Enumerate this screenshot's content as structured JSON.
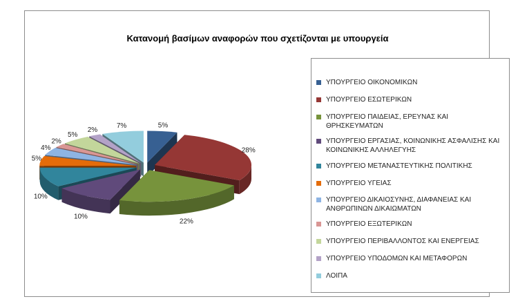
{
  "chart_data": {
    "type": "pie",
    "title": "Κατανομή βασίμων αναφορών που σχετίζονται με υπουργεία",
    "categories": [
      "ΥΠΟΥΡΓΕΙΟ ΟΙΚΟΝΟΜΙΚΩΝ",
      "ΥΠΟΥΡΓΕΙΟ ΕΣΩΤΕΡΙΚΩΝ",
      "ΥΠΟΥΡΓΕΙΟ ΠΑΙΔΕΙΑΣ, ΕΡΕΥΝΑΣ ΚΑΙ ΘΡΗΣΚΕΥΜΑΤΩΝ",
      "ΥΠΟΥΡΓΕΙΟ ΕΡΓΑΣΙΑΣ, ΚΟΙΝΩΝΙΚΗΣ ΑΣΦΑΛΙΣΗΣ ΚΑΙ ΚΟΙΝΩΝΙΚΗΣ ΑΛΛΗΛΕΓΥΗΣ",
      "ΥΠΟΥΡΓΕΙΟ ΜΕΤΑΝΑΣΤΕΥΤΙΚΗΣ ΠΟΛΙΤΙΚΗΣ",
      "ΥΠΟΥΡΓΕΙΟ ΥΓΕΙΑΣ",
      "ΥΠΟΥΡΓΕΙΟ ΔΙΚΑΙΟΣΥΝΗΣ, ΔΙΑΦΑΝΕΙΑΣ ΚΑΙ ΑΝΘΡΩΠΙΝΩΝ ΔΙΚΑΙΩΜΑΤΩΝ",
      "ΥΠΟΥΡΓΕΙΟ ΕΞΩΤΕΡΙΚΩΝ",
      "ΥΠΟΥΡΓΕΙΟ ΠΕΡΙΒΑΛΛΟΝΤΟΣ ΚΑΙ ΕΝΕΡΓΕΙΑΣ",
      "ΥΠΟΥΡΓΕΙΟ ΥΠΟΔΟΜΩΝ ΚΑΙ ΜΕΤΑΦΟΡΩΝ",
      "ΛΟΙΠΑ"
    ],
    "values": [
      5,
      28,
      22,
      10,
      10,
      5,
      4,
      2,
      5,
      2,
      7
    ],
    "value_labels": [
      "5%",
      "28%",
      "22%",
      "10%",
      "10%",
      "5%",
      "4%",
      "2%",
      "5%",
      "2%",
      "7%"
    ],
    "colors": [
      "#376092",
      "#953735",
      "#77933c",
      "#604a7b",
      "#31859c",
      "#e46c0a",
      "#8eb4e3",
      "#d99694",
      "#c3d69b",
      "#b3a2c7",
      "#93cddd"
    ],
    "style": "3d-exploded",
    "legend_position": "right"
  }
}
